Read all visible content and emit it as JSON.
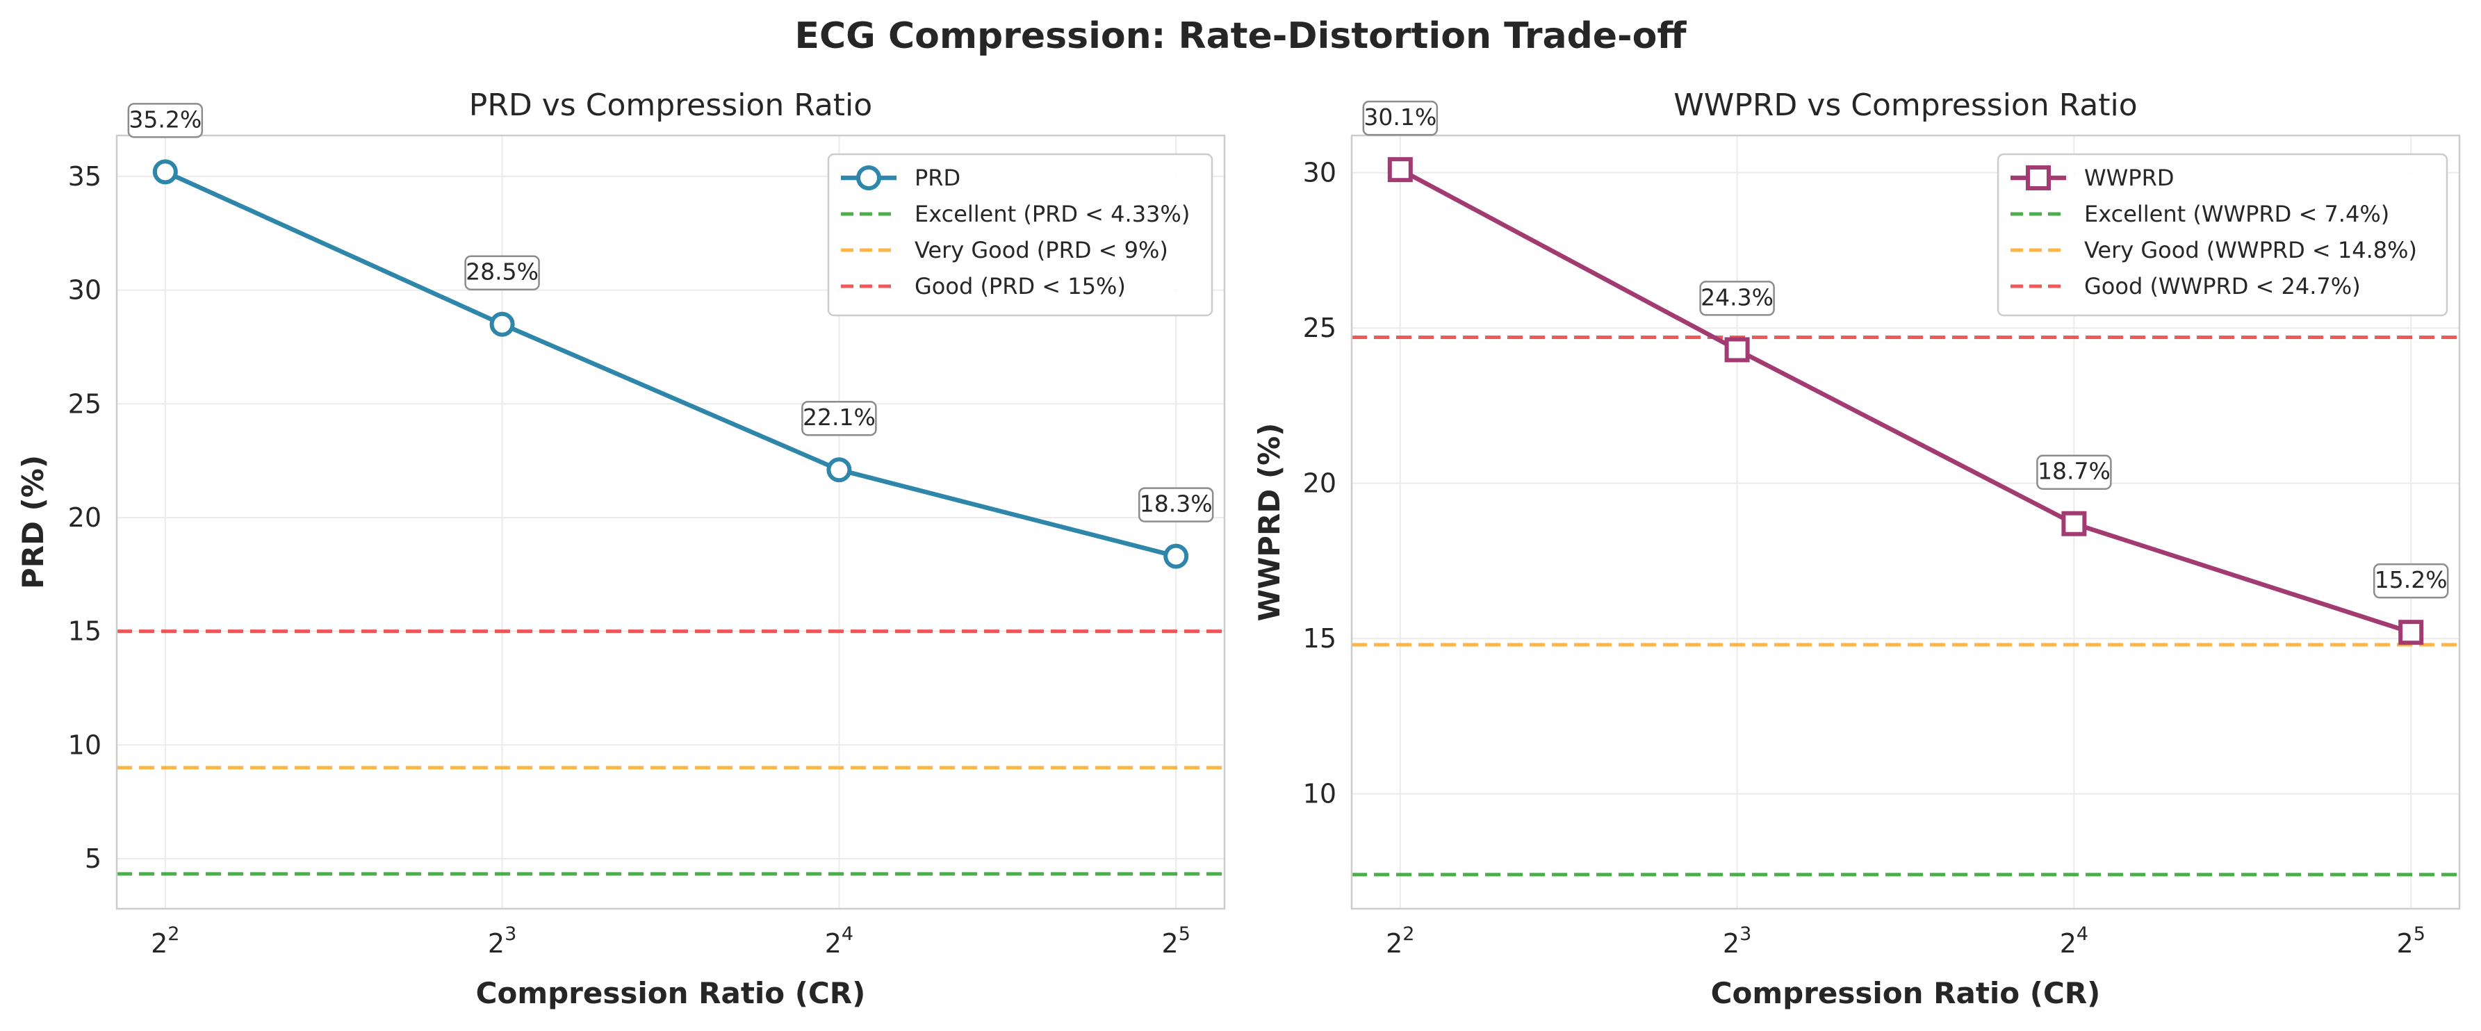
{
  "suptitle": "ECG Compression: Rate-Distortion Trade-off",
  "chart_data": [
    {
      "type": "line",
      "title": "PRD vs Compression Ratio",
      "xlabel": "Compression Ratio (CR)",
      "ylabel": "PRD (%)",
      "x_scale": "log2",
      "x": [
        4,
        8,
        16,
        32
      ],
      "xticks": [
        {
          "base": "2",
          "exp": "2"
        },
        {
          "base": "2",
          "exp": "3"
        },
        {
          "base": "2",
          "exp": "4"
        },
        {
          "base": "2",
          "exp": "5"
        }
      ],
      "ylim": [
        2.8,
        36.8
      ],
      "yticks": [
        5,
        10,
        15,
        20,
        25,
        30,
        35
      ],
      "grid": true,
      "legend_position": "top-right",
      "series": [
        {
          "name": "PRD",
          "values": [
            35.2,
            28.5,
            22.1,
            18.3
          ],
          "color": "#2e86ab",
          "marker": "circle",
          "data_labels": [
            "35.2%",
            "28.5%",
            "22.1%",
            "18.3%"
          ]
        }
      ],
      "thresholds": [
        {
          "name": "Excellent (PRD < 4.33%)",
          "value": 4.33,
          "color": "#2ca02c"
        },
        {
          "name": "Very Good (PRD < 9%)",
          "value": 9,
          "color": "#ffa726"
        },
        {
          "name": "Good (PRD < 15%)",
          "value": 15,
          "color": "#f03b3b"
        }
      ]
    },
    {
      "type": "line",
      "title": "WWPRD vs Compression Ratio",
      "xlabel": "Compression Ratio (CR)",
      "ylabel": "WWPRD (%)",
      "x_scale": "log2",
      "x": [
        4,
        8,
        16,
        32
      ],
      "xticks": [
        {
          "base": "2",
          "exp": "2"
        },
        {
          "base": "2",
          "exp": "3"
        },
        {
          "base": "2",
          "exp": "4"
        },
        {
          "base": "2",
          "exp": "5"
        }
      ],
      "ylim": [
        6.3,
        31.2
      ],
      "yticks": [
        10,
        15,
        20,
        25,
        30
      ],
      "grid": true,
      "legend_position": "top-right",
      "series": [
        {
          "name": "WWPRD",
          "values": [
            30.1,
            24.3,
            18.7,
            15.2
          ],
          "color": "#a23b72",
          "marker": "square",
          "data_labels": [
            "30.1%",
            "24.3%",
            "18.7%",
            "15.2%"
          ]
        }
      ],
      "thresholds": [
        {
          "name": "Excellent (WWPRD < 7.4%)",
          "value": 7.4,
          "color": "#2ca02c"
        },
        {
          "name": "Very Good (WWPRD < 14.8%)",
          "value": 14.8,
          "color": "#ffa726"
        },
        {
          "name": "Good (WWPRD < 24.7%)",
          "value": 24.7,
          "color": "#f03b3b"
        }
      ]
    }
  ]
}
